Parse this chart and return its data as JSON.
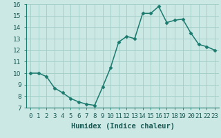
{
  "x": [
    0,
    1,
    2,
    3,
    4,
    5,
    6,
    7,
    8,
    9,
    10,
    11,
    12,
    13,
    14,
    15,
    16,
    17,
    18,
    19,
    20,
    21,
    22,
    23
  ],
  "y": [
    10,
    10,
    9.7,
    8.7,
    8.3,
    7.8,
    7.5,
    7.3,
    7.2,
    8.8,
    10.5,
    12.7,
    13.2,
    13.0,
    15.2,
    15.2,
    15.8,
    14.4,
    14.6,
    14.7,
    13.5,
    12.5,
    12.3,
    12.0
  ],
  "line_color": "#1a7a6e",
  "marker": "D",
  "marker_size": 2.5,
  "linewidth": 1.1,
  "bg_color": "#cce8e4",
  "grid_color": "#a0ccc7",
  "xlabel": "Humidex (Indice chaleur)",
  "xlim": [
    -0.5,
    23.5
  ],
  "ylim": [
    7,
    16
  ],
  "yticks": [
    7,
    8,
    9,
    10,
    11,
    12,
    13,
    14,
    15,
    16
  ],
  "xtick_labels": [
    "0",
    "1",
    "2",
    "3",
    "4",
    "5",
    "6",
    "7",
    "8",
    "9",
    "10",
    "11",
    "12",
    "13",
    "14",
    "15",
    "16",
    "17",
    "18",
    "19",
    "20",
    "21",
    "22",
    "23"
  ],
  "xlabel_fontsize": 7.5,
  "tick_fontsize": 6.5
}
